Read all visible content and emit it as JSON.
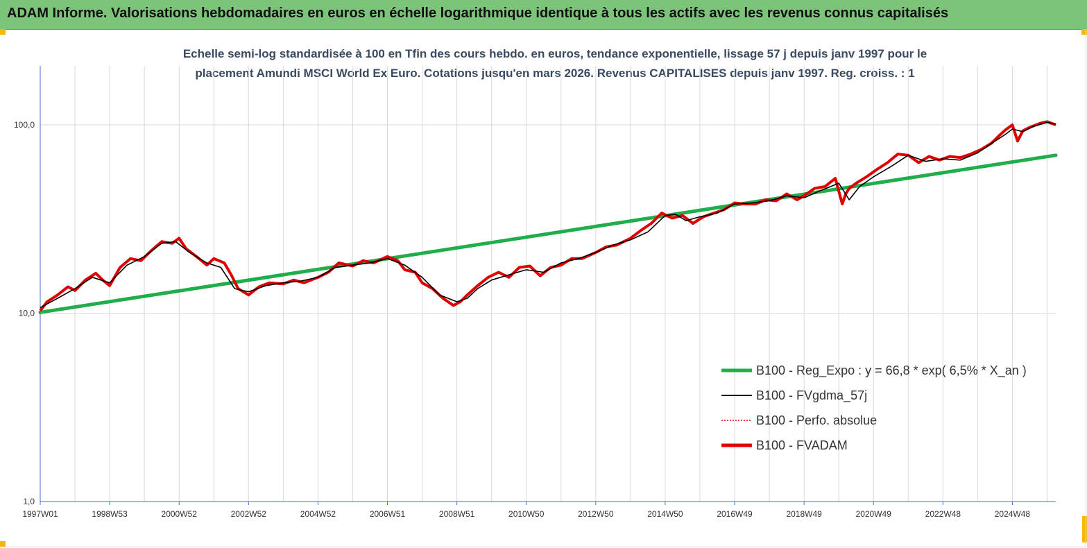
{
  "banner": {
    "title": "ADAM Informe. Valorisations hebdomadaires en euros en échelle logarithmique identique à tous les actifs avec les revenus connus capitalisés"
  },
  "colors": {
    "banner_bg": "#7cc47a",
    "reg_expo": "#1fae4b",
    "fvgdma": "#000000",
    "perfo": "#e00000",
    "fvadam": "#e00000",
    "corner": "#f5b800"
  },
  "chart_data": {
    "type": "line",
    "title_line1": "Echelle semi-log standardisée à 100 en Tfin des cours hebdo. en euros, tendance exponentielle, lissage 57 j depuis janv 1997 pour le",
    "title_line2": "placement Amundi MSCI World Ex Euro. Cotations jusqu'en mars 2026. Revenus CAPITALISES depuis janv 1997. Reg. croiss. : 1",
    "y_scale": "log",
    "ylim": [
      1,
      200
    ],
    "xlim": [
      1997.0,
      2026.25
    ],
    "grid": true,
    "legend_position": "right",
    "y_ticks": [
      {
        "value": 1,
        "label": "1,0"
      },
      {
        "value": 10,
        "label": "10,0"
      },
      {
        "value": 100,
        "label": "100,0"
      }
    ],
    "x_ticks": [
      {
        "value": 1997.0,
        "label": "1997W01"
      },
      {
        "value": 1999.0,
        "label": "1998W53"
      },
      {
        "value": 2001.0,
        "label": "2000W52"
      },
      {
        "value": 2003.0,
        "label": "2002W52"
      },
      {
        "value": 2005.0,
        "label": "2004W52"
      },
      {
        "value": 2007.0,
        "label": "2006W51"
      },
      {
        "value": 2009.0,
        "label": "2008W51"
      },
      {
        "value": 2011.0,
        "label": "2010W50"
      },
      {
        "value": 2013.0,
        "label": "2012W50"
      },
      {
        "value": 2015.0,
        "label": "2014W50"
      },
      {
        "value": 2017.0,
        "label": "2016W49"
      },
      {
        "value": 2019.0,
        "label": "2018W49"
      },
      {
        "value": 2021.0,
        "label": "2020W49"
      },
      {
        "value": 2023.0,
        "label": "2022W48"
      },
      {
        "value": 2025.0,
        "label": "2024W48"
      }
    ],
    "series": [
      {
        "name": "B100 - Reg_Expo : y = 66,8 * exp( 6,5% *  X_an )",
        "style": "reg",
        "x": [
          1997.0,
          2026.25
        ],
        "y": [
          10.1,
          69.0
        ]
      },
      {
        "name": "B100 - FVgdma_57j",
        "style": "smooth",
        "x": [
          1997.0,
          1997.5,
          1998.0,
          1998.5,
          1999.0,
          1999.5,
          2000.0,
          2000.5,
          2000.9,
          2001.3,
          2001.8,
          2002.2,
          2002.6,
          2003.0,
          2003.5,
          2004.0,
          2004.5,
          2005.0,
          2005.5,
          2006.0,
          2006.5,
          2007.0,
          2007.5,
          2008.0,
          2008.5,
          2009.0,
          2009.3,
          2009.6,
          2010.0,
          2010.5,
          2011.0,
          2011.5,
          2012.0,
          2012.5,
          2013.0,
          2013.5,
          2014.0,
          2014.5,
          2015.0,
          2015.3,
          2015.6,
          2016.0,
          2016.5,
          2017.0,
          2017.5,
          2018.0,
          2018.5,
          2019.0,
          2019.5,
          2020.0,
          2020.3,
          2020.6,
          2021.0,
          2021.5,
          2022.0,
          2022.5,
          2023.0,
          2023.5,
          2024.0,
          2024.5,
          2024.8,
          2025.0,
          2025.3,
          2025.6,
          2026.0,
          2026.25
        ],
        "y": [
          10.7,
          12.0,
          13.5,
          15.5,
          14.5,
          18.0,
          20.0,
          23.5,
          24.0,
          21.0,
          18.5,
          17.5,
          13.5,
          13.0,
          14.0,
          14.5,
          14.8,
          15.5,
          17.5,
          18.0,
          18.5,
          19.5,
          18.0,
          15.5,
          12.5,
          11.5,
          12.0,
          13.5,
          15.0,
          16.0,
          17.0,
          16.5,
          18.5,
          19.5,
          21.0,
          23.0,
          24.5,
          27.0,
          33.0,
          33.5,
          31.0,
          32.5,
          34.0,
          38.0,
          38.5,
          39.5,
          42.0,
          41.0,
          45.0,
          49.0,
          40.0,
          47.0,
          53.0,
          60.0,
          69.0,
          64.0,
          66.0,
          65.0,
          71.0,
          82.0,
          89.0,
          95.0,
          92.0,
          98.0,
          103.0,
          101.0
        ]
      },
      {
        "name": "B100 - Perfo. absolue",
        "style": "dotted",
        "x": [],
        "y": []
      },
      {
        "name": "B100 - FVADAM",
        "style": "main",
        "x": [
          1997.0,
          1997.2,
          1997.5,
          1997.8,
          1998.0,
          1998.3,
          1998.6,
          1998.8,
          1999.0,
          1999.3,
          1999.6,
          1999.9,
          2000.2,
          2000.5,
          2000.8,
          2001.0,
          2001.2,
          2001.5,
          2001.8,
          2002.0,
          2002.3,
          2002.5,
          2002.7,
          2003.0,
          2003.3,
          2003.6,
          2004.0,
          2004.3,
          2004.6,
          2005.0,
          2005.3,
          2005.6,
          2006.0,
          2006.3,
          2006.6,
          2007.0,
          2007.3,
          2007.5,
          2007.8,
          2008.0,
          2008.3,
          2008.6,
          2008.9,
          2009.1,
          2009.3,
          2009.6,
          2009.9,
          2010.2,
          2010.5,
          2010.8,
          2011.1,
          2011.4,
          2011.7,
          2012.0,
          2012.3,
          2012.6,
          2013.0,
          2013.3,
          2013.6,
          2014.0,
          2014.3,
          2014.6,
          2014.9,
          2015.2,
          2015.5,
          2015.8,
          2016.1,
          2016.4,
          2016.7,
          2017.0,
          2017.3,
          2017.6,
          2017.9,
          2018.2,
          2018.5,
          2018.8,
          2019.0,
          2019.3,
          2019.6,
          2019.9,
          2020.1,
          2020.2,
          2020.3,
          2020.5,
          2020.8,
          2021.1,
          2021.4,
          2021.7,
          2022.0,
          2022.3,
          2022.6,
          2022.9,
          2023.2,
          2023.5,
          2023.8,
          2024.1,
          2024.4,
          2024.6,
          2024.8,
          2025.0,
          2025.15,
          2025.3,
          2025.5,
          2025.8,
          2026.0,
          2026.25
        ],
        "y": [
          10.3,
          11.5,
          12.5,
          13.8,
          13.2,
          15.0,
          16.3,
          15.0,
          14.0,
          17.5,
          19.5,
          19.0,
          21.5,
          24.0,
          23.5,
          25.0,
          22.0,
          20.0,
          18.0,
          19.5,
          18.5,
          16.0,
          13.5,
          12.5,
          13.8,
          14.5,
          14.3,
          15.0,
          14.5,
          15.5,
          16.5,
          18.5,
          17.8,
          19.0,
          18.5,
          20.0,
          19.0,
          17.0,
          16.5,
          14.5,
          13.5,
          12.0,
          11.0,
          11.5,
          12.5,
          14.0,
          15.5,
          16.5,
          15.5,
          17.5,
          17.8,
          15.8,
          17.5,
          18.0,
          19.5,
          19.5,
          21.0,
          22.5,
          23.0,
          25.0,
          27.5,
          30.0,
          34.0,
          32.0,
          33.0,
          30.0,
          32.5,
          34.0,
          35.5,
          38.5,
          38.0,
          38.0,
          40.0,
          39.5,
          43.0,
          40.0,
          42.0,
          46.0,
          47.0,
          52.0,
          38.0,
          43.0,
          46.0,
          49.0,
          53.0,
          58.0,
          63.0,
          70.0,
          69.0,
          63.0,
          68.0,
          65.0,
          68.0,
          67.0,
          70.0,
          74.0,
          80.0,
          87.0,
          94.0,
          100.0,
          82.0,
          93.0,
          97.0,
          102.0,
          104.0,
          100.0
        ]
      }
    ]
  },
  "legend": {
    "items": [
      {
        "label": "B100 - Reg_Expo : y = 66,8 * exp( 6,5% *  X_an )",
        "color": "#1fae4b",
        "style": "thick"
      },
      {
        "label": "B100 - FVgdma_57j",
        "color": "#000000",
        "style": "normal"
      },
      {
        "label": "B100 - Perfo. absolue",
        "color": "#e00000",
        "style": "dotted"
      },
      {
        "label": "B100 - FVADAM",
        "color": "#e00000",
        "style": "thick"
      }
    ]
  }
}
